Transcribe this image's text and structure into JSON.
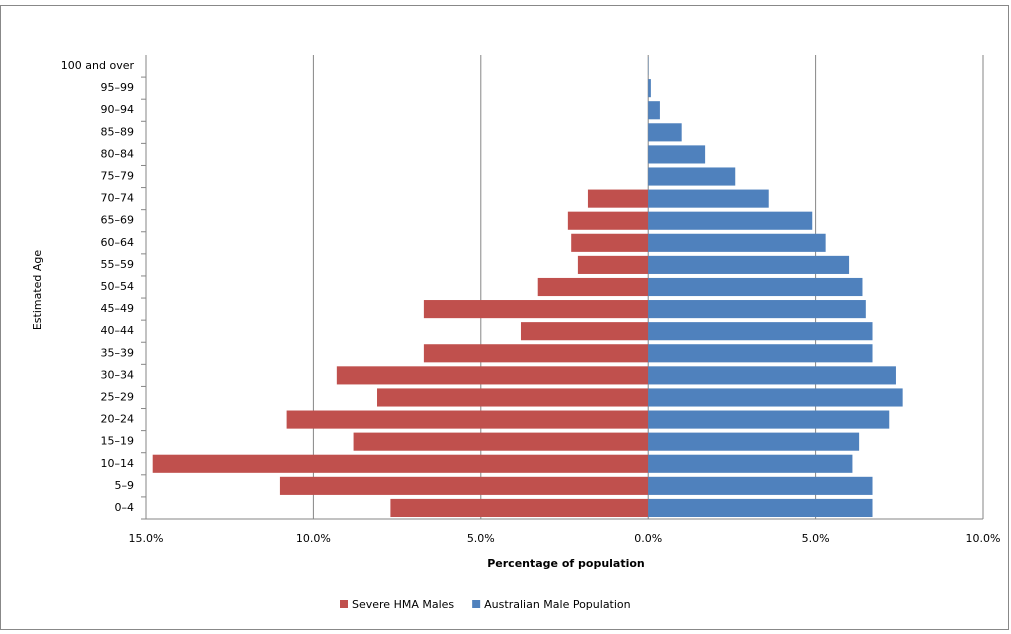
{
  "chart_data": {
    "type": "pyramid",
    "x_axis_label": "Percentage of population",
    "y_axis_label": "Estimated Age",
    "categories": [
      "0–4",
      "5–9",
      "10–14",
      "15–19",
      "20–24",
      "25–29",
      "30–34",
      "35–39",
      "40–44",
      "45–49",
      "50–54",
      "55–59",
      "60–64",
      "65–69",
      "70–74",
      "75–79",
      "80–84",
      "85–89",
      "90–94",
      "95–99",
      "100 and over"
    ],
    "series": [
      {
        "name": "Severe HMA Males",
        "color": "#c0504d",
        "values": [
          -7.7,
          -11.0,
          -14.8,
          -8.8,
          -10.8,
          -8.1,
          -9.3,
          -6.7,
          -3.8,
          -6.7,
          -3.3,
          -2.1,
          -2.3,
          -2.4,
          -1.8,
          0,
          0,
          0,
          0,
          0,
          0
        ]
      },
      {
        "name": "Australian Male Population",
        "color": "#4f81bd",
        "values": [
          6.7,
          6.7,
          6.1,
          6.3,
          7.2,
          7.6,
          7.4,
          6.7,
          6.7,
          6.5,
          6.4,
          6.0,
          5.3,
          4.9,
          3.6,
          2.6,
          1.7,
          1.0,
          0.35,
          0.08,
          0.01
        ]
      }
    ],
    "xlim": [
      -15,
      10
    ],
    "xticks": [
      {
        "value": -15,
        "label": "15.0%"
      },
      {
        "value": -10,
        "label": "10.0%"
      },
      {
        "value": -5,
        "label": "5.0%"
      },
      {
        "value": 0,
        "label": "0.0%"
      },
      {
        "value": 5,
        "label": "5.0%"
      },
      {
        "value": 10,
        "label": "10.0%"
      }
    ],
    "grid": true,
    "legend": "bottom"
  }
}
